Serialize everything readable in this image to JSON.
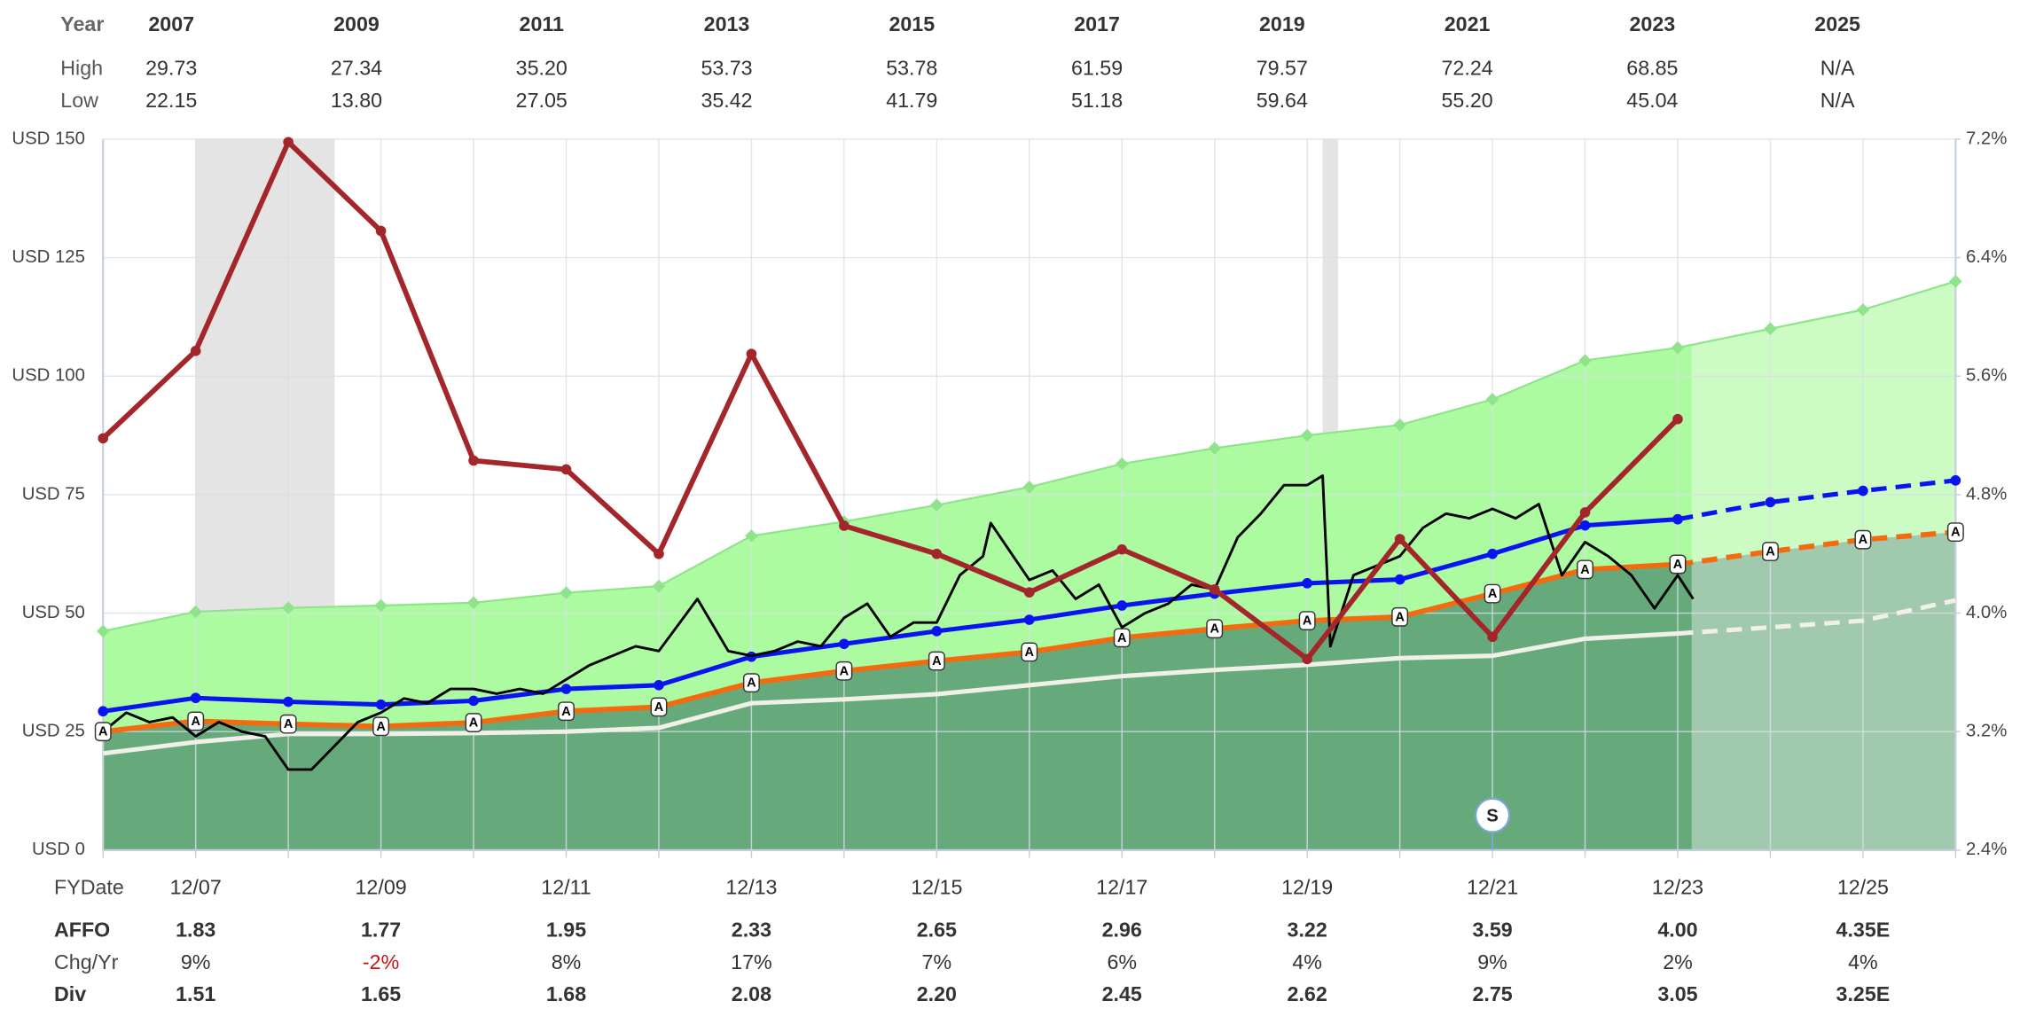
{
  "top_table": {
    "header": "Year",
    "years": [
      "2007",
      "2009",
      "2011",
      "2013",
      "2015",
      "2017",
      "2019",
      "2021",
      "2023",
      "2025"
    ],
    "rows": [
      {
        "label": "High",
        "values": [
          "29.73",
          "27.34",
          "35.20",
          "53.73",
          "53.78",
          "61.59",
          "79.57",
          "72.24",
          "68.85",
          "N/A"
        ]
      },
      {
        "label": "Low",
        "values": [
          "22.15",
          "13.80",
          "27.05",
          "35.42",
          "41.79",
          "51.18",
          "59.64",
          "55.20",
          "45.04",
          "N/A"
        ]
      }
    ]
  },
  "chart_data": {
    "type": "line",
    "xlabel": "FYDate",
    "categories": [
      null,
      "12/07",
      null,
      "12/09",
      null,
      "12/11",
      null,
      "12/13",
      null,
      "12/15",
      null,
      "12/17",
      null,
      "12/19",
      null,
      "12/21",
      null,
      "12/23",
      null,
      "12/25",
      null
    ],
    "ylim": [
      0,
      150
    ],
    "yticks": [
      {
        "value": 0,
        "label": "USD 0"
      },
      {
        "value": 25,
        "label": "USD 25"
      },
      {
        "value": 50,
        "label": "USD 50"
      },
      {
        "value": 75,
        "label": "USD 75"
      },
      {
        "value": 100,
        "label": "USD 100"
      },
      {
        "value": 125,
        "label": "USD 125"
      },
      {
        "value": 150,
        "label": "USD 150"
      }
    ],
    "y2lim": [
      2.4,
      7.2
    ],
    "y2ticks": [
      {
        "value": 2.4,
        "label": "2.4%"
      },
      {
        "value": 3.2,
        "label": "3.2%"
      },
      {
        "value": 4.0,
        "label": "4.0%"
      },
      {
        "value": 4.8,
        "label": "4.8%"
      },
      {
        "value": 5.6,
        "label": "5.6%"
      },
      {
        "value": 6.4,
        "label": "6.4%"
      },
      {
        "value": 7.2,
        "label": "7.2%"
      }
    ],
    "grid": true,
    "shaded_periods": [
      {
        "from": "12/07",
        "to": "06/09"
      },
      {
        "from": "02/20",
        "to": "04/20"
      }
    ],
    "shade_color": "#e4e4e4",
    "series": [
      {
        "color": "#8fe38a",
        "fill": "#adfba1",
        "marker": "diamond",
        "width": 1.5,
        "values": [
          46.2,
          50.3,
          51.1,
          51.6,
          52.2,
          54.3,
          55.7,
          66.3,
          69.3,
          72.8,
          76.6,
          81.5,
          84.8,
          87.5,
          89.7,
          95.1,
          103.3,
          106,
          110,
          114,
          120
        ]
      },
      {
        "color": "#f0f0e8",
        "width": 3.5,
        "marker": "none",
        "values": [
          20.4,
          22.8,
          24.5,
          24.5,
          24.7,
          25,
          25.8,
          31,
          31.8,
          32.9,
          34.8,
          36.7,
          38,
          39.1,
          40.5,
          41,
          44.6,
          45.7,
          null,
          null,
          null
        ]
      },
      {
        "color": "#f0f0e8",
        "width": 3.5,
        "marker": "none",
        "dashed": true,
        "values": [
          null,
          null,
          null,
          null,
          null,
          null,
          null,
          null,
          null,
          null,
          null,
          null,
          null,
          null,
          null,
          null,
          null,
          45.7,
          47,
          48.4,
          52.7
        ]
      },
      {
        "color": "#f26b0f",
        "fill": "#66a97b",
        "width": 4,
        "marker": "none",
        "point_label": "A",
        "values": [
          25,
          27.2,
          26.6,
          26.1,
          26.9,
          29.3,
          30.2,
          35.3,
          37.8,
          39.9,
          41.8,
          44.8,
          46.7,
          48.4,
          49.2,
          54.1,
          59.2,
          60.3,
          null,
          null,
          null
        ]
      },
      {
        "color": "#f26b0f",
        "fill": "#66a97b",
        "width": 4,
        "marker": "none",
        "dashed": true,
        "point_label": "A",
        "values": [
          null,
          null,
          null,
          null,
          null,
          null,
          null,
          null,
          null,
          null,
          null,
          null,
          null,
          null,
          null,
          null,
          null,
          60.3,
          63,
          65.5,
          67.1
        ]
      },
      {
        "color": "#0a14f0",
        "width": 3.5,
        "marker": "dot",
        "values": [
          29.3,
          32.1,
          31.3,
          30.7,
          31.5,
          34,
          34.8,
          40.8,
          43.5,
          46.2,
          48.6,
          51.6,
          54.1,
          56.3,
          57.1,
          62.5,
          68.5,
          69.8,
          null,
          null,
          null
        ]
      },
      {
        "color": "#0a14f0",
        "width": 3.5,
        "marker": "dot",
        "dashed": true,
        "values": [
          null,
          null,
          null,
          null,
          null,
          null,
          null,
          null,
          null,
          null,
          null,
          null,
          null,
          null,
          null,
          null,
          null,
          69.8,
          73.4,
          75.8,
          78
        ]
      },
      {
        "color": "#000000",
        "width": 2,
        "marker": "none",
        "x": [
          "12/06",
          "03/07",
          "06/07",
          "09/07",
          "12/07",
          "03/08",
          "06/08",
          "09/08",
          "12/08",
          "03/09",
          "06/09",
          "09/09",
          "12/09",
          "03/10",
          "06/10",
          "09/10",
          "12/10",
          "03/11",
          "06/11",
          "09/11",
          "12/11",
          "03/12",
          "06/12",
          "09/12",
          "12/12",
          "05/13",
          "09/13",
          "12/13",
          "03/14",
          "06/14",
          "09/14",
          "12/14",
          "03/15",
          "06/15",
          "09/15",
          "12/15",
          "03/16",
          "06/16",
          "07/16",
          "12/16",
          "03/17",
          "06/17",
          "09/17",
          "12/17",
          "03/18",
          "06/18",
          "09/18",
          "12/18",
          "03/19",
          "06/19",
          "09/19",
          "12/19",
          "02/20",
          "03/20",
          "06/20",
          "09/20",
          "12/20",
          "03/21",
          "06/21",
          "09/21",
          "12/21",
          "03/22",
          "06/22",
          "09/22",
          "12/22",
          "03/23",
          "06/23",
          "09/23",
          "12/23",
          "02/24"
        ],
        "values": [
          25,
          29,
          27,
          28,
          24,
          27,
          25,
          24,
          17,
          17,
          22,
          27,
          29,
          32,
          31,
          34,
          34,
          33,
          34,
          33,
          36,
          39,
          41,
          43,
          42,
          53,
          42,
          41,
          42,
          44,
          43,
          49,
          52,
          45,
          48,
          48,
          58,
          62,
          69,
          57,
          59,
          53,
          56,
          47,
          50,
          52,
          56,
          55,
          66,
          71,
          77,
          77,
          79,
          43,
          58,
          60,
          62,
          68,
          71,
          70,
          72,
          70,
          73,
          58,
          65,
          62,
          58,
          51,
          58,
          53
        ]
      },
      {
        "color": "#a3262a",
        "width": 4,
        "marker": "dot",
        "axis": "y2",
        "values": [
          5.18,
          5.77,
          7.18,
          6.58,
          5.03,
          4.97,
          4.4,
          5.75,
          4.59,
          4.4,
          4.14,
          4.43,
          4.16,
          3.69,
          4.5,
          3.84,
          4.68,
          5.31,
          null,
          null,
          null
        ]
      }
    ],
    "markers": [
      {
        "x": "12/21",
        "label": "S"
      }
    ]
  },
  "bottom_table": {
    "rows": [
      {
        "label": "AFFO",
        "bold": true,
        "values": [
          "1.83",
          "1.77",
          "1.95",
          "2.33",
          "2.65",
          "2.96",
          "3.22",
          "3.59",
          "4.00",
          "4.35E"
        ]
      },
      {
        "label": "Chg/Yr",
        "bold": false,
        "values": [
          "9%",
          "-2%",
          "8%",
          "17%",
          "7%",
          "6%",
          "4%",
          "9%",
          "2%",
          "4%"
        ]
      },
      {
        "label": "Div",
        "bold": true,
        "values": [
          "1.51",
          "1.65",
          "1.68",
          "2.08",
          "2.20",
          "2.45",
          "2.62",
          "2.75",
          "3.05",
          "3.25E"
        ]
      }
    ]
  }
}
